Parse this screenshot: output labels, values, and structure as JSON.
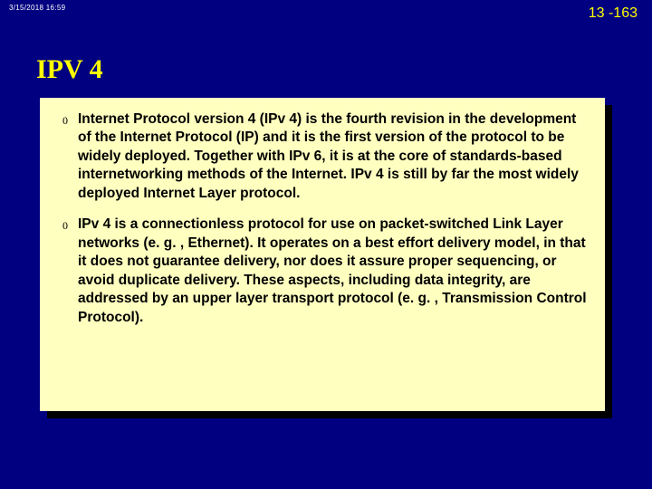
{
  "header": {
    "timestamp": "3/15/2018  16:59",
    "page_number": "13 -163"
  },
  "title": "IPV 4",
  "panel": {
    "items": [
      {
        "bullet": "0",
        "text": "Internet Protocol version 4 (IPv 4) is the fourth revision in the development of the Internet Protocol (IP) and it is the first version of the protocol to be widely deployed. Together with IPv 6, it is at the core of standards-based internetworking methods of the Internet. IPv 4 is still by far the most widely deployed Internet Layer protocol."
      },
      {
        "bullet": "0",
        "text": "IPv 4 is a connectionless protocol for use on packet-switched Link Layer networks (e. g. , Ethernet). It operates on a best effort delivery model, in that it does not guarantee delivery, nor does it assure proper sequencing, or avoid duplicate delivery. These aspects, including data integrity, are addressed by an upper layer transport protocol (e. g. , Transmission Control Protocol)."
      }
    ]
  },
  "colors": {
    "background": "#000080",
    "accent": "#ffff00",
    "panel_bg": "#ffffc0",
    "panel_shadow": "#000000",
    "timestamp": "#ffffff",
    "body_text": "#000000"
  }
}
